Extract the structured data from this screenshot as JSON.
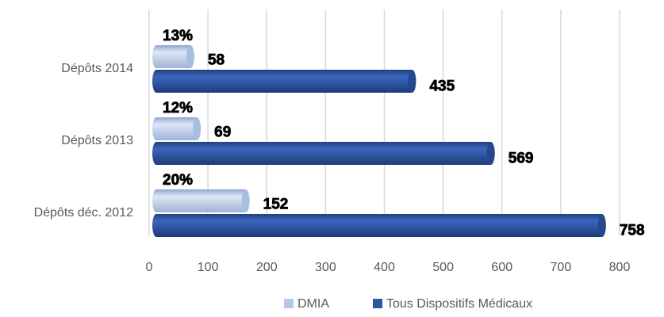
{
  "chart_data": {
    "type": "barh",
    "categories": [
      "Dépôts 2014",
      "Dépôts 2013",
      "Dépôts déc. 2012"
    ],
    "series": [
      {
        "name": "DMIA",
        "color": "#b4c7e7",
        "values": [
          58,
          69,
          152
        ],
        "share_labels": [
          "13%",
          "12%",
          "20%"
        ]
      },
      {
        "name": "Tous Dispositifs Médicaux",
        "color": "#2f55a4",
        "values": [
          435,
          569,
          758
        ]
      }
    ],
    "xlim": [
      0,
      800
    ],
    "xticks": [
      0,
      100,
      200,
      300,
      400,
      500,
      600,
      700,
      800
    ],
    "grid": true,
    "legend": "bottom"
  }
}
